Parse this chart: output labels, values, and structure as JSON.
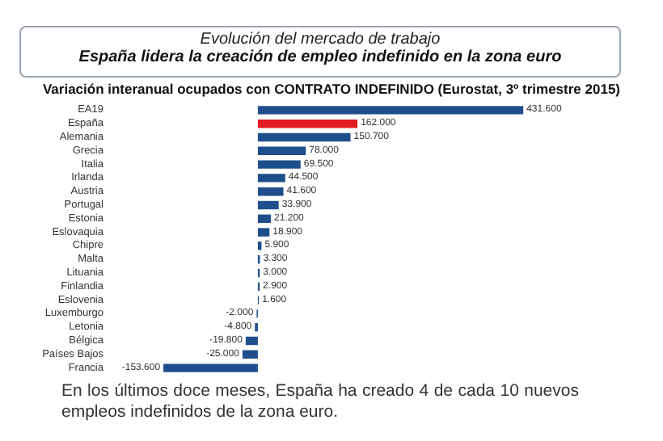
{
  "chart_data": {
    "type": "bar",
    "orientation": "horizontal",
    "title": "Evolución del mercado de trabajo",
    "subtitle": "España lidera la creación de empleo indefinido en la zona euro",
    "annotations": [
      "Variación interanual ocupados con CONTRATO INDEFINIDO (Eurostat, 3º trimestre 2015)",
      "En los últimos doce meses, España ha creado 4 de cada 10 nuevos empleos indefinidos de la zona euro."
    ],
    "categories": [
      "EA19",
      "España",
      "Alemania",
      "Grecia",
      "Italia",
      "Irlanda",
      "Austria",
      "Portugal",
      "Estonia",
      "Eslovaquia",
      "Chipre",
      "Malta",
      "Lituania",
      "Finlandia",
      "Eslovenia",
      "Luxemburgo",
      "Letonia",
      "Bélgica",
      "Países Bajos",
      "Francia"
    ],
    "values": [
      431600,
      162000,
      150700,
      78000,
      69500,
      44500,
      41600,
      33900,
      21200,
      18900,
      5900,
      3300,
      3000,
      2900,
      1600,
      -2000,
      -4800,
      -19800,
      -25000,
      -153600
    ],
    "value_labels": [
      "431.600",
      "162.000",
      "150.700",
      "78.000",
      "69.500",
      "44.500",
      "41.600",
      "33.900",
      "21.200",
      "18.900",
      "5.900",
      "3.300",
      "3.000",
      "2.900",
      "1.600",
      "-2.000",
      "-4.800",
      "-19.800",
      "-25.000",
      "-153.600"
    ],
    "colors": [
      "#1f4e8c",
      "#e31b23",
      "#1f4e8c",
      "#1f4e8c",
      "#1f4e8c",
      "#1f4e8c",
      "#1f4e8c",
      "#1f4e8c",
      "#1f4e8c",
      "#1f4e8c",
      "#1f4e8c",
      "#1f4e8c",
      "#1f4e8c",
      "#1f4e8c",
      "#1f4e8c",
      "#1f4e8c",
      "#1f4e8c",
      "#1f4e8c",
      "#1f4e8c",
      "#1f4e8c"
    ]
  }
}
